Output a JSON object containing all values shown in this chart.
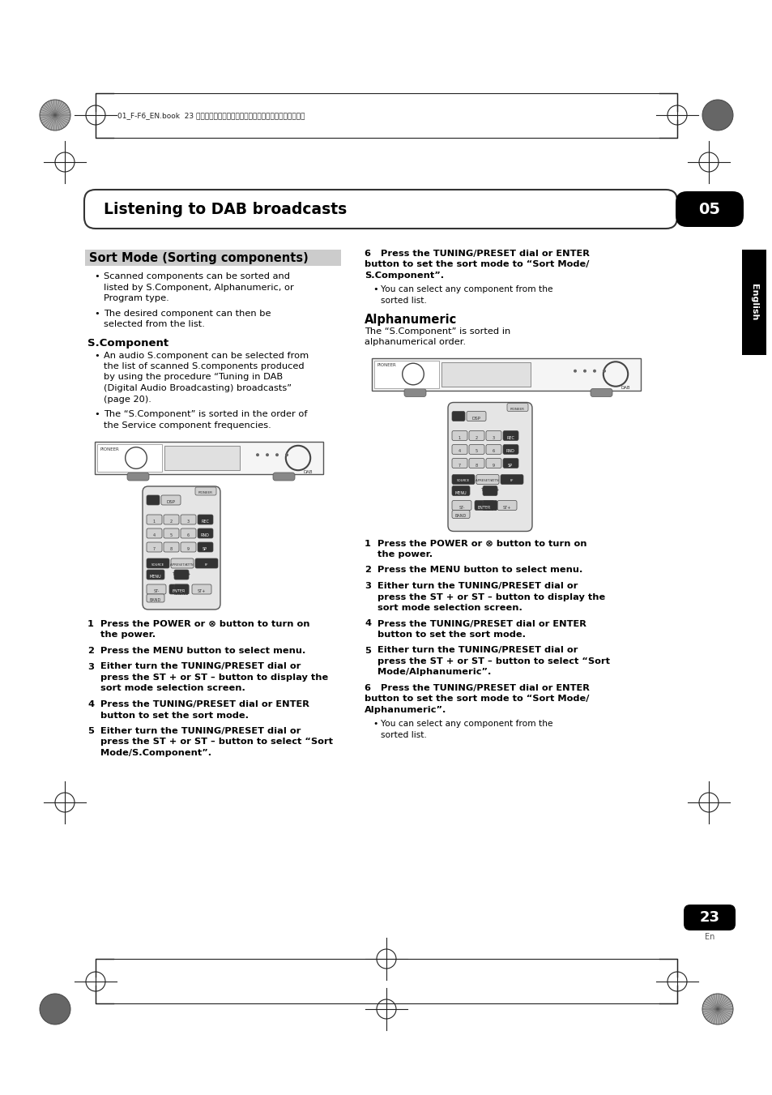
{
  "page_bg": "#ffffff",
  "header_text": "01_F-F6_EN.book  23 ページ　２００７年９月３日　月曜日　午後１時５８分",
  "title_text": "Listening to DAB broadcasts",
  "title_num": "05",
  "english_label": "English",
  "page_num": "23",
  "page_en": "En",
  "sec1_title": "Sort Mode (Sorting components)",
  "sec1_b1_lines": [
    "Scanned components can be sorted and",
    "listed by S.Component, Alphanumeric, or",
    "Program type."
  ],
  "sec1_b2_lines": [
    "The desired component can then be",
    "selected from the list."
  ],
  "sub1_title": "S.Component",
  "sub1_b1_lines": [
    "An audio S.component can be selected from",
    "the list of scanned S.components produced",
    "by using the procedure “Tuning in DAB",
    "(Digital Audio Broadcasting) broadcasts”",
    "(page 20)."
  ],
  "sub1_b2_lines": [
    "The “S.Component” is sorted in the order of",
    "the Service component frequencies."
  ],
  "left_steps": [
    {
      "n": "1",
      "lines": [
        "Press the POWER or ⊗ button to turn on",
        "the power."
      ]
    },
    {
      "n": "2",
      "lines": [
        "Press the MENU button to select menu."
      ]
    },
    {
      "n": "3",
      "lines": [
        "Either turn the TUNING/PRESET dial or",
        "press the ST + or ST – button to display the",
        "sort mode selection screen."
      ]
    },
    {
      "n": "4",
      "lines": [
        "Press the TUNING/PRESET dial or ENTER",
        "button to set the sort mode."
      ]
    },
    {
      "n": "5",
      "lines": [
        "Either turn the TUNING/PRESET dial or",
        "press the ST + or ST – button to select “Sort",
        "Mode/S.Component”."
      ]
    }
  ],
  "right_step6_lines": [
    "6   Press the TUNING/PRESET dial or ENTER",
    "button to set the sort mode to “Sort Mode/",
    "S.Component”."
  ],
  "right_b6_lines": [
    "You can select any component from the",
    "sorted list."
  ],
  "alpha_title": "Alphanumeric",
  "alpha_intro_lines": [
    "The “S.Component” is sorted in",
    "alphanumerical order."
  ],
  "right_steps": [
    {
      "n": "1",
      "lines": [
        "Press the POWER or ⊗ button to turn on",
        "the power."
      ]
    },
    {
      "n": "2",
      "lines": [
        "Press the MENU button to select menu."
      ]
    },
    {
      "n": "3",
      "lines": [
        "Either turn the TUNING/PRESET dial or",
        "press the ST + or ST – button to display the",
        "sort mode selection screen."
      ]
    },
    {
      "n": "4",
      "lines": [
        "Press the TUNING/PRESET dial or ENTER",
        "button to set the sort mode."
      ]
    },
    {
      "n": "5",
      "lines": [
        "Either turn the TUNING/PRESET dial or",
        "press the ST + or ST – button to select “Sort",
        "Mode/Alphanumeric”."
      ]
    }
  ],
  "right_step6b_lines": [
    "6   Press the TUNING/PRESET dial or ENTER",
    "button to set the sort mode to “Sort Mode/",
    "Alphanumeric”."
  ],
  "right_b6b_lines": [
    "You can select any component from the",
    "sorted list."
  ]
}
